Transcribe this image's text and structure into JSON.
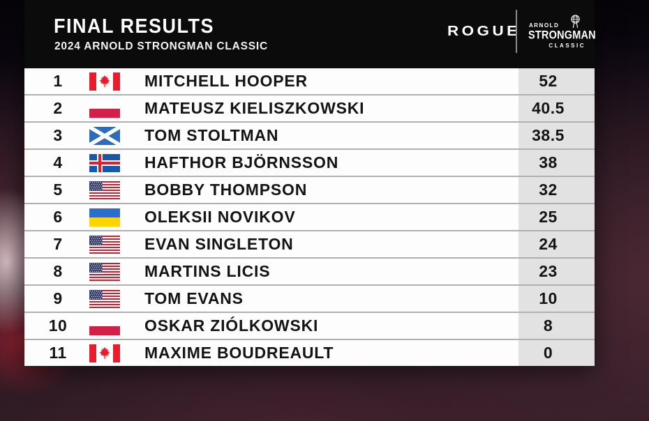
{
  "header": {
    "title": "FINAL RESULTS",
    "subtitle": "2024 ARNOLD STRONGMAN CLASSIC",
    "rogue_logo_text": "ROGUE",
    "asc_logo": {
      "top": "ARNOLD",
      "main": "STRONGMAN",
      "bottom": "CLASSIC"
    }
  },
  "table": {
    "rows": [
      {
        "rank": "1",
        "country": "canada",
        "name": "MITCHELL HOOPER",
        "score": "52"
      },
      {
        "rank": "2",
        "country": "poland",
        "name": "MATEUSZ KIELISZKOWSKI",
        "score": "40.5"
      },
      {
        "rank": "3",
        "country": "scotland",
        "name": "TOM STOLTMAN",
        "score": "38.5"
      },
      {
        "rank": "4",
        "country": "iceland",
        "name": "HAFTHOR BJÖRNSSON",
        "score": "38"
      },
      {
        "rank": "5",
        "country": "usa",
        "name": "BOBBY THOMPSON",
        "score": "32"
      },
      {
        "rank": "6",
        "country": "ukraine",
        "name": "OLEKSII NOVIKOV",
        "score": "25"
      },
      {
        "rank": "7",
        "country": "usa",
        "name": "EVAN SINGLETON",
        "score": "24"
      },
      {
        "rank": "8",
        "country": "usa",
        "name": "MARTINS LICIS",
        "score": "23"
      },
      {
        "rank": "9",
        "country": "usa",
        "name": "TOM EVANS",
        "score": "10"
      },
      {
        "rank": "10",
        "country": "poland",
        "name": "OSKAR ZIÓLKOWSKI",
        "score": "8"
      },
      {
        "rank": "11",
        "country": "canada",
        "name": "MAXIME BOUDREAULT",
        "score": "0"
      }
    ]
  },
  "colors": {
    "header_bg": "#0b0b0c",
    "header_text": "#ffffff",
    "row_bg": "#fdfdfd",
    "score_cell_bg": "#e2e2e2",
    "row_separator": "#b0b0b0",
    "row_text": "#141414"
  },
  "flag_colors": {
    "canada": {
      "red": "#ea1b2d",
      "white": "#ffffff"
    },
    "poland": {
      "white": "#ffffff",
      "red": "#d2204a"
    },
    "scotland": {
      "blue": "#2d6cb8",
      "white": "#ffffff"
    },
    "iceland": {
      "blue": "#1858a8",
      "white": "#ffffff",
      "red": "#dc2035"
    },
    "usa": {
      "red": "#bf2333",
      "white": "#ffffff",
      "blue": "#333a66"
    },
    "ukraine": {
      "blue": "#2a6dd1",
      "yellow": "#ffd400"
    }
  }
}
